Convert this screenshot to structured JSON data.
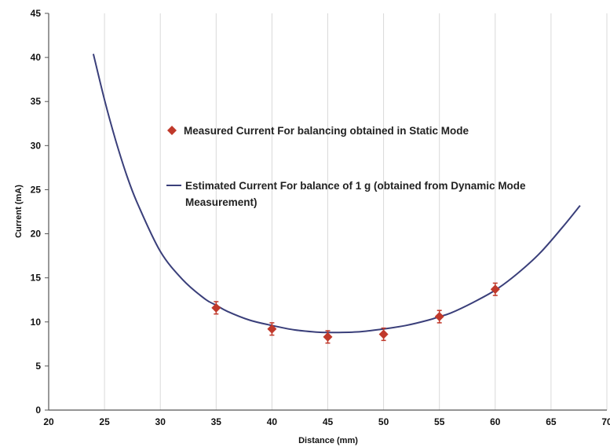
{
  "chart_data": {
    "type": "scatter",
    "xlabel": "Distance (mm)",
    "ylabel": "Current (mA)",
    "xlim": [
      20,
      70
    ],
    "ylim": [
      0,
      45
    ],
    "x_ticks": [
      20,
      25,
      30,
      35,
      40,
      45,
      50,
      55,
      60,
      65,
      70
    ],
    "x_tick_labels": [
      "20",
      "25",
      "30",
      "35",
      "40",
      "45",
      "50",
      "55",
      "60",
      "65",
      "70"
    ],
    "y_ticks": [
      0,
      5,
      10,
      15,
      20,
      25,
      30,
      35,
      40,
      45
    ],
    "y_tick_labels": [
      "0",
      "5",
      "10",
      "15",
      "20",
      "25",
      "30",
      "35",
      "40",
      "45"
    ],
    "grid": "vertical",
    "legend_placement": "center",
    "series": [
      {
        "name": "Measured Current For balancing obtained in Static Mode",
        "kind": "scatter",
        "marker": "diamond",
        "color": "#c0392b",
        "x": [
          35,
          40,
          45,
          50,
          55,
          60
        ],
        "y": [
          11.6,
          9.2,
          8.3,
          8.6,
          10.6,
          13.7
        ],
        "error": [
          0.7,
          0.7,
          0.7,
          0.7,
          0.7,
          0.7
        ]
      },
      {
        "name": "Estimated Current For balance of 1 g (obtained from Dynamic Mode Measurement)",
        "kind": "line",
        "color": "#3a3f7a",
        "x": [
          24,
          25,
          26,
          27,
          28,
          30,
          32,
          34,
          35,
          36,
          38,
          40,
          42,
          44,
          45,
          46,
          48,
          50,
          52,
          54,
          55,
          56,
          58,
          60,
          62,
          64,
          66,
          67.6
        ],
        "y": [
          40.4,
          35.2,
          30.6,
          26.6,
          23.3,
          18.0,
          14.8,
          12.6,
          11.9,
          11.2,
          10.2,
          9.6,
          9.1,
          8.85,
          8.8,
          8.8,
          8.9,
          9.2,
          9.6,
          10.2,
          10.6,
          11.0,
          12.2,
          13.6,
          15.5,
          17.8,
          20.7,
          23.2
        ]
      }
    ]
  }
}
